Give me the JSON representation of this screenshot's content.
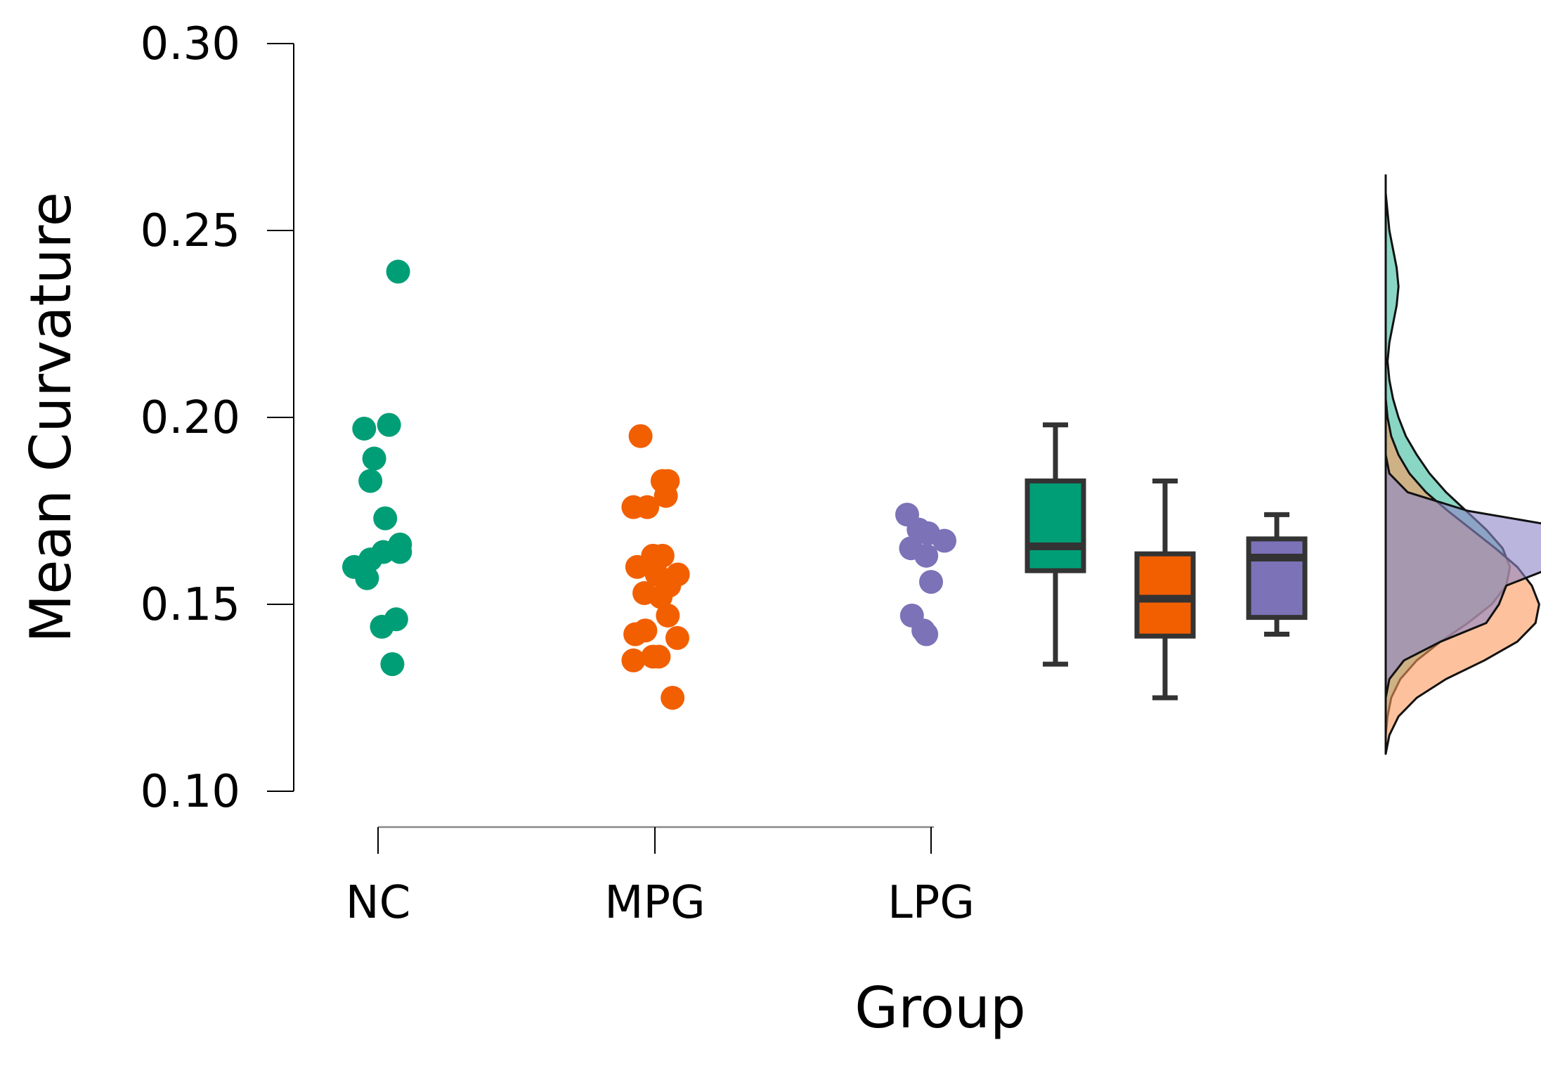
{
  "chart_data": {
    "type": "scatter",
    "subtype": "raincloud (jitter points + box plots + density)",
    "title": "",
    "xlabel": "Group",
    "ylabel": "Mean Curvature",
    "ylim": [
      0.1,
      0.3
    ],
    "yticks": [
      "0.10",
      "0.15",
      "0.20",
      "0.25",
      "0.30"
    ],
    "ytick_values": [
      0.1,
      0.15,
      0.2,
      0.25,
      0.3
    ],
    "categories": [
      "NC",
      "MPG",
      "LPG"
    ],
    "grid": false,
    "series": [
      {
        "name": "NC",
        "color": "#009e76",
        "points": [
          {
            "offset": 0.42,
            "value": 0.239
          },
          {
            "offset": 0.23,
            "value": 0.198
          },
          {
            "offset": -0.29,
            "value": 0.197
          },
          {
            "offset": -0.08,
            "value": 0.189
          },
          {
            "offset": -0.16,
            "value": 0.183
          },
          {
            "offset": 0.15,
            "value": 0.173
          },
          {
            "offset": 0.46,
            "value": 0.166
          },
          {
            "offset": 0.11,
            "value": 0.164
          },
          {
            "offset": 0.46,
            "value": 0.164
          },
          {
            "offset": -0.16,
            "value": 0.162
          },
          {
            "offset": -0.5,
            "value": 0.16
          },
          {
            "offset": -0.23,
            "value": 0.157
          },
          {
            "offset": 0.38,
            "value": 0.146
          },
          {
            "offset": 0.08,
            "value": 0.144
          },
          {
            "offset": 0.3,
            "value": 0.134
          }
        ],
        "box": {
          "min": 0.134,
          "q1": 0.159,
          "median": 0.1655,
          "q3": 0.183,
          "max": 0.198
        }
      },
      {
        "name": "MPG",
        "color": "#f25f00",
        "points": [
          {
            "offset": -0.3,
            "value": 0.195
          },
          {
            "offset": 0.16,
            "value": 0.183
          },
          {
            "offset": 0.27,
            "value": 0.183
          },
          {
            "offset": 0.23,
            "value": 0.179
          },
          {
            "offset": -0.45,
            "value": 0.176
          },
          {
            "offset": -0.16,
            "value": 0.176
          },
          {
            "offset": -0.04,
            "value": 0.163
          },
          {
            "offset": 0.16,
            "value": 0.163
          },
          {
            "offset": -0.37,
            "value": 0.16
          },
          {
            "offset": 0.04,
            "value": 0.158
          },
          {
            "offset": 0.48,
            "value": 0.158
          },
          {
            "offset": 0.3,
            "value": 0.155
          },
          {
            "offset": -0.22,
            "value": 0.153
          },
          {
            "offset": 0.12,
            "value": 0.152
          },
          {
            "offset": 0.27,
            "value": 0.147
          },
          {
            "offset": -0.41,
            "value": 0.142
          },
          {
            "offset": -0.2,
            "value": 0.143
          },
          {
            "offset": 0.47,
            "value": 0.141
          },
          {
            "offset": -0.45,
            "value": 0.135
          },
          {
            "offset": -0.04,
            "value": 0.136
          },
          {
            "offset": 0.08,
            "value": 0.136
          },
          {
            "offset": 0.37,
            "value": 0.125
          }
        ],
        "box": {
          "min": 0.125,
          "q1": 0.1415,
          "median": 0.1515,
          "q3": 0.1635,
          "max": 0.183
        }
      },
      {
        "name": "LPG",
        "color": "#7b72b8",
        "points": [
          {
            "offset": -0.5,
            "value": 0.174
          },
          {
            "offset": -0.26,
            "value": 0.17
          },
          {
            "offset": -0.06,
            "value": 0.169
          },
          {
            "offset": 0.28,
            "value": 0.167
          },
          {
            "offset": -0.42,
            "value": 0.165
          },
          {
            "offset": -0.1,
            "value": 0.163
          },
          {
            "offset": 0.0,
            "value": 0.156
          },
          {
            "offset": -0.4,
            "value": 0.147
          },
          {
            "offset": -0.16,
            "value": 0.143
          },
          {
            "offset": -0.1,
            "value": 0.142
          }
        ],
        "box": {
          "min": 0.142,
          "q1": 0.1465,
          "median": 0.1625,
          "q3": 0.1675,
          "max": 0.174
        }
      }
    ],
    "density": [
      {
        "name": "NC",
        "color": "#2ab596",
        "opacity": 0.55,
        "y": [
          0.115,
          0.12,
          0.125,
          0.13,
          0.135,
          0.14,
          0.145,
          0.15,
          0.155,
          0.16,
          0.165,
          0.17,
          0.175,
          0.18,
          0.185,
          0.19,
          0.195,
          0.2,
          0.205,
          0.21,
          0.215,
          0.22,
          0.225,
          0.23,
          0.235,
          0.24,
          0.245,
          0.25,
          0.255,
          0.26
        ],
        "d": [
          0.0,
          0.01,
          0.03,
          0.08,
          0.17,
          0.3,
          0.45,
          0.58,
          0.66,
          0.68,
          0.64,
          0.55,
          0.44,
          0.33,
          0.24,
          0.17,
          0.11,
          0.07,
          0.04,
          0.02,
          0.01,
          0.02,
          0.04,
          0.06,
          0.07,
          0.06,
          0.04,
          0.02,
          0.01,
          0.0
        ]
      },
      {
        "name": "MPG",
        "color": "#fb9a5c",
        "opacity": 0.6,
        "y": [
          0.11,
          0.115,
          0.12,
          0.125,
          0.13,
          0.135,
          0.14,
          0.145,
          0.15,
          0.155,
          0.16,
          0.165,
          0.17,
          0.175,
          0.18,
          0.185,
          0.19,
          0.195,
          0.2,
          0.205,
          0.21
        ],
        "d": [
          0.0,
          0.02,
          0.07,
          0.17,
          0.33,
          0.54,
          0.72,
          0.82,
          0.84,
          0.8,
          0.72,
          0.6,
          0.47,
          0.34,
          0.22,
          0.13,
          0.07,
          0.03,
          0.01,
          0.0,
          0.0
        ]
      },
      {
        "name": "LPG",
        "color": "#8e87c6",
        "opacity": 0.62,
        "y": [
          0.125,
          0.13,
          0.135,
          0.14,
          0.145,
          0.15,
          0.155,
          0.16,
          0.165,
          0.17,
          0.175,
          0.18,
          0.185,
          0.19
        ],
        "d": [
          0.0,
          0.02,
          0.1,
          0.3,
          0.55,
          0.62,
          0.66,
          0.92,
          1.28,
          1.05,
          0.45,
          0.12,
          0.02,
          0.0
        ]
      }
    ]
  }
}
